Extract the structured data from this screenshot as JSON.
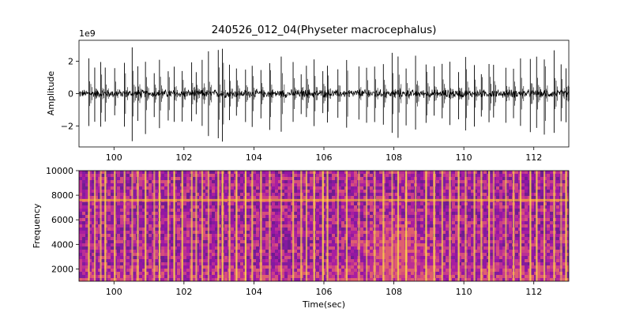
{
  "figure": {
    "title": "240526_012_04(Physeter macrocephalus)"
  },
  "chart_data": [
    {
      "type": "line",
      "name": "waveform",
      "ylabel": "Amplitude",
      "xlabel": "",
      "y_scale_label": "1e9",
      "xlim": [
        99.0,
        113.0
      ],
      "ylim": [
        -3.3,
        3.3
      ],
      "x_ticks": [
        100,
        102,
        104,
        106,
        108,
        110,
        112
      ],
      "x_tick_labels": [
        "100",
        "102",
        "104",
        "106",
        "108",
        "110",
        "112"
      ],
      "y_ticks": [
        -2,
        0,
        2
      ],
      "y_tick_labels": [
        "−2",
        "0",
        "2"
      ],
      "noise_amplitude": 0.25,
      "clicks": [
        {
          "t": 99.28,
          "a": 2.2
        },
        {
          "t": 99.45,
          "a": 1.8
        },
        {
          "t": 99.62,
          "a": 2.5
        },
        {
          "t": 99.75,
          "a": 2.0
        },
        {
          "t": 100.02,
          "a": 1.6
        },
        {
          "t": 100.3,
          "a": 2.1
        },
        {
          "t": 100.52,
          "a": 3.0
        },
        {
          "t": 100.68,
          "a": 1.9
        },
        {
          "t": 100.9,
          "a": 2.6
        },
        {
          "t": 101.15,
          "a": 1.5
        },
        {
          "t": 101.3,
          "a": 2.2
        },
        {
          "t": 101.55,
          "a": 1.7
        },
        {
          "t": 101.72,
          "a": 2.0
        },
        {
          "t": 101.95,
          "a": 1.8
        },
        {
          "t": 102.22,
          "a": 2.0
        },
        {
          "t": 102.35,
          "a": 1.5
        },
        {
          "t": 102.52,
          "a": 2.1
        },
        {
          "t": 102.7,
          "a": 3.0
        },
        {
          "t": 102.98,
          "a": 2.8
        },
        {
          "t": 103.1,
          "a": 3.0
        },
        {
          "t": 103.3,
          "a": 2.0
        },
        {
          "t": 103.5,
          "a": 1.6
        },
        {
          "t": 103.76,
          "a": 1.9
        },
        {
          "t": 103.95,
          "a": 2.2
        },
        {
          "t": 104.2,
          "a": 1.7
        },
        {
          "t": 104.45,
          "a": 2.3
        },
        {
          "t": 104.78,
          "a": 2.7
        },
        {
          "t": 105.12,
          "a": 2.0
        },
        {
          "t": 105.35,
          "a": 1.4
        },
        {
          "t": 105.5,
          "a": 1.8
        },
        {
          "t": 105.72,
          "a": 2.2
        },
        {
          "t": 105.97,
          "a": 1.5
        },
        {
          "t": 106.1,
          "a": 2.0
        },
        {
          "t": 106.4,
          "a": 1.6
        },
        {
          "t": 106.65,
          "a": 2.2
        },
        {
          "t": 107.0,
          "a": 1.7
        },
        {
          "t": 107.22,
          "a": 1.9
        },
        {
          "t": 107.45,
          "a": 2.0
        },
        {
          "t": 107.7,
          "a": 2.2
        },
        {
          "t": 107.95,
          "a": 2.9
        },
        {
          "t": 108.12,
          "a": 2.8
        },
        {
          "t": 108.35,
          "a": 2.0
        },
        {
          "t": 108.62,
          "a": 2.6
        },
        {
          "t": 108.92,
          "a": 2.2
        },
        {
          "t": 109.15,
          "a": 1.7
        },
        {
          "t": 109.38,
          "a": 1.9
        },
        {
          "t": 109.6,
          "a": 2.0
        },
        {
          "t": 109.85,
          "a": 1.7
        },
        {
          "t": 110.05,
          "a": 2.4
        },
        {
          "t": 110.3,
          "a": 2.1
        },
        {
          "t": 110.5,
          "a": 1.6
        },
        {
          "t": 110.72,
          "a": 1.9
        },
        {
          "t": 110.85,
          "a": 1.8
        },
        {
          "t": 111.2,
          "a": 2.0
        },
        {
          "t": 111.42,
          "a": 1.6
        },
        {
          "t": 111.62,
          "a": 2.2
        },
        {
          "t": 111.9,
          "a": 2.4
        },
        {
          "t": 112.08,
          "a": 2.6
        },
        {
          "t": 112.3,
          "a": 2.6
        },
        {
          "t": 112.58,
          "a": 2.8
        },
        {
          "t": 112.78,
          "a": 1.9
        },
        {
          "t": 112.92,
          "a": 2.0
        }
      ]
    },
    {
      "type": "heatmap",
      "name": "spectrogram",
      "xlabel": "Time(sec)",
      "ylabel": "Frequency",
      "colormap": "plasma",
      "colors": {
        "low": "#3a0d8a",
        "mid": "#c8339c",
        "high": "#f6a33a",
        "peak": "#f9d24a"
      },
      "xlim": [
        99.0,
        113.0
      ],
      "ylim": [
        1000,
        10000
      ],
      "x_ticks": [
        100,
        102,
        104,
        106,
        108,
        110,
        112
      ],
      "x_tick_labels": [
        "100",
        "102",
        "104",
        "106",
        "108",
        "110",
        "112"
      ],
      "y_ticks": [
        2000,
        4000,
        6000,
        8000,
        10000
      ],
      "y_tick_labels": [
        "2000",
        "4000",
        "6000",
        "8000",
        "10000"
      ],
      "tonal_band_hz": 7600,
      "energy_hotspot": {
        "t": 108.0,
        "f": 3500
      }
    }
  ]
}
